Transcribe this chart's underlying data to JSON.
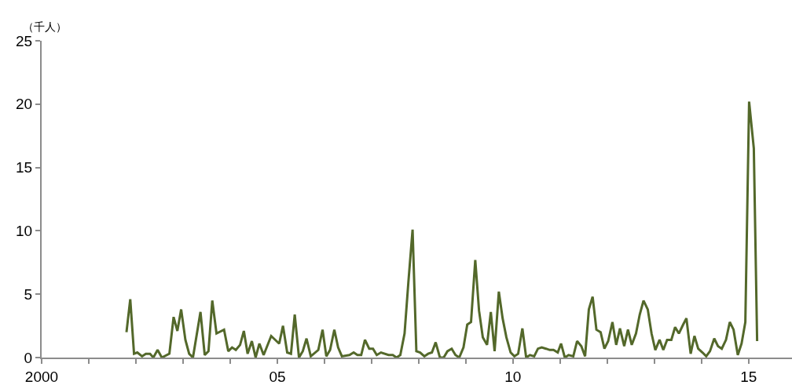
{
  "chart_data": {
    "type": "line",
    "ylabel": "（千人）",
    "x": [
      2001.8,
      2001.88,
      2001.96,
      2002.03,
      2002.13,
      2002.21,
      2002.3,
      2002.37,
      2002.46,
      2002.55,
      2002.71,
      2002.8,
      2002.88,
      2002.96,
      2003.05,
      2003.13,
      2003.21,
      2003.37,
      2003.46,
      2003.54,
      2003.62,
      2003.71,
      2003.87,
      2003.96,
      2004.04,
      2004.12,
      2004.21,
      2004.29,
      2004.37,
      2004.46,
      2004.54,
      2004.62,
      2004.71,
      2004.87,
      2005.04,
      2005.12,
      2005.21,
      2005.29,
      2005.37,
      2005.46,
      2005.54,
      2005.62,
      2005.71,
      2005.87,
      2005.96,
      2006.04,
      2006.12,
      2006.21,
      2006.29,
      2006.37,
      2006.53,
      2006.62,
      2006.7,
      2006.78,
      2006.86,
      2006.95,
      2007.03,
      2007.11,
      2007.2,
      2007.36,
      2007.45,
      2007.53,
      2007.61,
      2007.7,
      2007.78,
      2007.87,
      2007.95,
      2008.03,
      2008.12,
      2008.2,
      2008.28,
      2008.36,
      2008.45,
      2008.53,
      2008.61,
      2008.7,
      2008.78,
      2008.86,
      2008.95,
      2009.03,
      2009.11,
      2009.2,
      2009.28,
      2009.36,
      2009.45,
      2009.53,
      2009.61,
      2009.7,
      2009.78,
      2009.86,
      2009.95,
      2010.03,
      2010.11,
      2010.2,
      2010.28,
      2010.36,
      2010.45,
      2010.53,
      2010.61,
      2010.7,
      2010.78,
      2010.86,
      2010.95,
      2011.02,
      2011.1,
      2011.18,
      2011.28,
      2011.36,
      2011.45,
      2011.53,
      2011.61,
      2011.69,
      2011.77,
      2011.86,
      2011.94,
      2012.02,
      2012.11,
      2012.19,
      2012.27,
      2012.36,
      2012.44,
      2012.52,
      2012.61,
      2012.69,
      2012.77,
      2012.86,
      2012.94,
      2013.02,
      2013.11,
      2013.19,
      2013.27,
      2013.36,
      2013.44,
      2013.52,
      2013.61,
      2013.68,
      2013.77,
      2013.85,
      2013.93,
      2014.02,
      2014.1,
      2014.18,
      2014.27,
      2014.35,
      2014.43,
      2014.52,
      2014.6,
      2014.68,
      2014.77,
      2014.85,
      2014.93,
      2015.01,
      2015.11,
      2015.18
    ],
    "xlim": [
      2000,
      2015.92
    ],
    "xticks": [
      2000,
      {
        "value": 2001,
        "label": null
      },
      {
        "value": 2002,
        "label": null
      },
      {
        "value": 2003,
        "label": null
      },
      {
        "value": 2004,
        "label": null
      },
      {
        "value": 2005,
        "label": "05"
      },
      {
        "value": 2006,
        "label": null
      },
      {
        "value": 2007,
        "label": null
      },
      {
        "value": 2008,
        "label": null
      },
      {
        "value": 2009,
        "label": null
      },
      {
        "value": 2010,
        "label": "10"
      },
      {
        "value": 2011,
        "label": null
      },
      {
        "value": 2012,
        "label": null
      },
      {
        "value": 2013,
        "label": null
      },
      {
        "value": 2014,
        "label": null
      },
      {
        "value": 2015,
        "label": "15"
      }
    ],
    "ylim": [
      0,
      25
    ],
    "yticks": [
      0,
      5,
      10,
      15,
      20,
      25
    ],
    "grid": false,
    "marker": "none",
    "line_style": "solid",
    "series": [
      {
        "color": "#53682a",
        "values": [
          2.0,
          4.6,
          0.3,
          0.4,
          0.1,
          0.3,
          0.3,
          0.0,
          0.6,
          0.0,
          0.3,
          3.2,
          2.1,
          3.8,
          1.4,
          0.3,
          0.0,
          3.6,
          0.2,
          0.5,
          4.5,
          1.9,
          2.2,
          0.5,
          0.8,
          0.6,
          1.0,
          2.1,
          0.3,
          1.3,
          0.0,
          1.1,
          0.2,
          1.7,
          1.1,
          2.5,
          0.4,
          0.3,
          3.4,
          0.0,
          0.5,
          1.5,
          0.1,
          0.6,
          2.2,
          0.1,
          0.6,
          2.2,
          0.8,
          0.1,
          0.2,
          0.4,
          0.2,
          0.2,
          1.4,
          0.7,
          0.7,
          0.2,
          0.4,
          0.2,
          0.2,
          0.0,
          0.2,
          1.9,
          5.9,
          10.1,
          0.5,
          0.4,
          0.1,
          0.3,
          0.4,
          1.2,
          0.0,
          0.0,
          0.5,
          0.7,
          0.2,
          0.0,
          0.8,
          2.6,
          2.8,
          7.7,
          3.7,
          1.6,
          1.0,
          3.6,
          0.5,
          5.2,
          3.1,
          1.6,
          0.4,
          0.1,
          0.3,
          2.3,
          0.0,
          0.2,
          0.1,
          0.7,
          0.8,
          0.7,
          0.6,
          0.6,
          0.4,
          1.1,
          0.0,
          0.2,
          0.1,
          1.3,
          0.9,
          0.1,
          3.8,
          4.8,
          2.2,
          2.0,
          0.7,
          1.3,
          2.8,
          1.0,
          2.3,
          0.9,
          2.2,
          1.0,
          1.9,
          3.4,
          4.5,
          3.8,
          1.9,
          0.6,
          1.4,
          0.6,
          1.4,
          1.4,
          2.4,
          1.9,
          2.6,
          3.1,
          0.3,
          1.7,
          0.7,
          0.4,
          0.1,
          0.5,
          1.5,
          0.9,
          0.7,
          1.4,
          2.8,
          2.2,
          0.2,
          1.1,
          2.8,
          20.2,
          16.5,
          1.3
        ]
      }
    ]
  }
}
